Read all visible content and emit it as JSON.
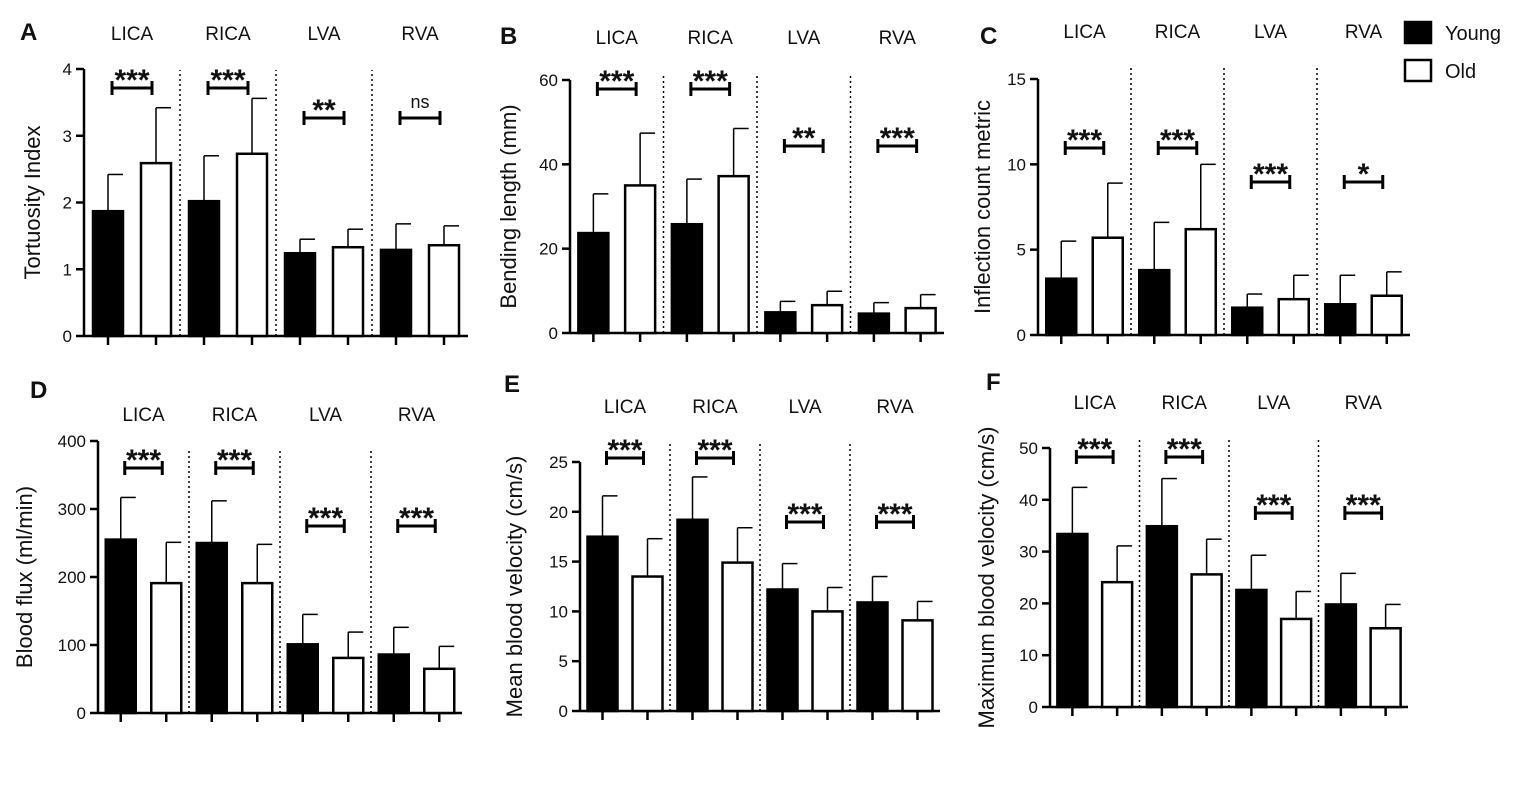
{
  "legend": {
    "items": [
      {
        "label": "Young",
        "fill": "#000000"
      },
      {
        "label": "Old",
        "fill": "#ffffff"
      }
    ]
  },
  "chart_data": [
    {
      "panel": "A",
      "type": "bar",
      "ylabel": "Tortuosity Index",
      "ylim": [
        0,
        4
      ],
      "ticks": [
        0,
        1,
        2,
        3,
        4
      ],
      "categories": [
        "LICA",
        "RICA",
        "LVA",
        "RVA"
      ],
      "series": [
        {
          "name": "Young",
          "values": [
            1.87,
            2.02,
            1.24,
            1.29
          ],
          "errors": [
            0.55,
            0.68,
            0.21,
            0.39
          ]
        },
        {
          "name": "Old",
          "values": [
            2.59,
            2.73,
            1.33,
            1.36
          ],
          "errors": [
            0.83,
            0.83,
            0.27,
            0.29
          ]
        }
      ],
      "significance": [
        "***",
        "***",
        "**",
        "ns"
      ]
    },
    {
      "panel": "B",
      "type": "bar",
      "ylabel": "Bending length (mm)",
      "ylim": [
        0,
        60
      ],
      "ticks": [
        0,
        20,
        40,
        60
      ],
      "categories": [
        "LICA",
        "RICA",
        "LVA",
        "RVA"
      ],
      "series": [
        {
          "name": "Young",
          "values": [
            23.7,
            25.8,
            4.9,
            4.6
          ],
          "errors": [
            9.3,
            10.7,
            2.6,
            2.6
          ]
        },
        {
          "name": "Old",
          "values": [
            35.0,
            37.2,
            6.6,
            5.9
          ],
          "errors": [
            12.4,
            11.3,
            3.3,
            3.2
          ]
        }
      ],
      "significance": [
        "***",
        "***",
        "**",
        "***"
      ]
    },
    {
      "panel": "C",
      "type": "bar",
      "ylabel": "Inflection count metric",
      "ylim": [
        0,
        15
      ],
      "ticks": [
        0,
        5,
        10,
        15
      ],
      "categories": [
        "LICA",
        "RICA",
        "LVA",
        "RVA"
      ],
      "series": [
        {
          "name": "Young",
          "values": [
            3.3,
            3.8,
            1.6,
            1.8
          ],
          "errors": [
            2.2,
            2.8,
            0.8,
            1.7
          ]
        },
        {
          "name": "Old",
          "values": [
            5.7,
            6.2,
            2.1,
            2.3
          ],
          "errors": [
            3.2,
            3.8,
            1.4,
            1.4
          ]
        }
      ],
      "significance": [
        "***",
        "***",
        "***",
        "*"
      ]
    },
    {
      "panel": "D",
      "type": "bar",
      "ylabel": "Blood flux (ml/min)",
      "ylim": [
        0,
        400
      ],
      "ticks": [
        0,
        100,
        200,
        300,
        400
      ],
      "categories": [
        "LICA",
        "RICA",
        "LVA",
        "RVA"
      ],
      "series": [
        {
          "name": "Young",
          "values": [
            255,
            250,
            101,
            86
          ],
          "errors": [
            62,
            62,
            44,
            40
          ]
        },
        {
          "name": "Old",
          "values": [
            191,
            191,
            81,
            65
          ],
          "errors": [
            60,
            57,
            38,
            33
          ]
        }
      ],
      "significance": [
        "***",
        "***",
        "***",
        "***"
      ]
    },
    {
      "panel": "E",
      "type": "bar",
      "ylabel": "Mean blood velocity (cm/s)",
      "ylim": [
        0,
        25
      ],
      "ticks": [
        0,
        5,
        10,
        15,
        20,
        25
      ],
      "categories": [
        "LICA",
        "RICA",
        "LVA",
        "RVA"
      ],
      "series": [
        {
          "name": "Young",
          "values": [
            17.5,
            19.2,
            12.2,
            10.9
          ],
          "errors": [
            4.1,
            4.3,
            2.6,
            2.6
          ]
        },
        {
          "name": "Old",
          "values": [
            13.5,
            14.9,
            10.0,
            9.1
          ],
          "errors": [
            3.8,
            3.5,
            2.4,
            1.9
          ]
        }
      ],
      "significance": [
        "***",
        "***",
        "***",
        "***"
      ]
    },
    {
      "panel": "F",
      "type": "bar",
      "ylabel": "Maximum blood velocity (cm/s)",
      "ylim": [
        0,
        50
      ],
      "ticks": [
        0,
        10,
        20,
        30,
        40,
        50
      ],
      "categories": [
        "LICA",
        "RICA",
        "LVA",
        "RVA"
      ],
      "series": [
        {
          "name": "Young",
          "values": [
            33.4,
            34.9,
            22.6,
            19.8
          ],
          "errors": [
            9.0,
            9.2,
            6.7,
            6.0
          ]
        },
        {
          "name": "Old",
          "values": [
            24.1,
            25.6,
            17.0,
            15.2
          ],
          "errors": [
            7.0,
            6.8,
            5.3,
            4.6
          ]
        }
      ],
      "significance": [
        "***",
        "***",
        "***",
        "***"
      ]
    }
  ]
}
